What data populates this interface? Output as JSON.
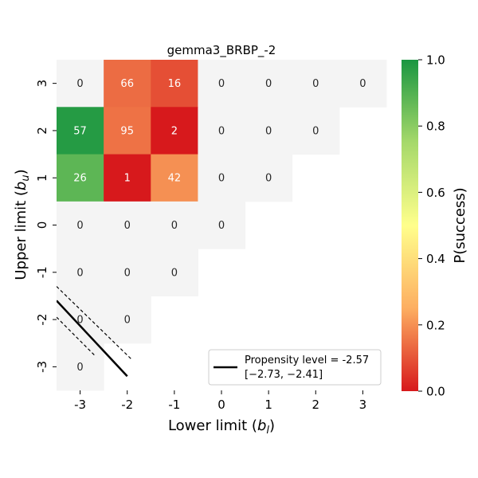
{
  "chart_data": {
    "type": "heatmap",
    "title": "gemma3_BRBP_-2",
    "xlabel_main": "Lower limit (",
    "xlabel_var": "b",
    "xlabel_sub": "l",
    "xlabel_close": ")",
    "ylabel_main": "Upper limit (",
    "ylabel_var": "b",
    "ylabel_sub": "u",
    "ylabel_close": ")",
    "x_ticks": [
      "-3",
      "-2",
      "-1",
      "0",
      "1",
      "2",
      "3"
    ],
    "y_ticks": [
      "3",
      "2",
      "1",
      "0",
      "-1",
      "-2",
      "-3"
    ],
    "cells": [
      {
        "row": 0,
        "col": 0,
        "label": "0",
        "p": null
      },
      {
        "row": 0,
        "col": 1,
        "label": "66",
        "p": 0.14
      },
      {
        "row": 0,
        "col": 2,
        "label": "16",
        "p": 0.09
      },
      {
        "row": 0,
        "col": 3,
        "label": "0",
        "p": null
      },
      {
        "row": 0,
        "col": 4,
        "label": "0",
        "p": null
      },
      {
        "row": 0,
        "col": 5,
        "label": "0",
        "p": null
      },
      {
        "row": 0,
        "col": 6,
        "label": "0",
        "p": null
      },
      {
        "row": 1,
        "col": 0,
        "label": "57",
        "p": 0.98
      },
      {
        "row": 1,
        "col": 1,
        "label": "95",
        "p": 0.15
      },
      {
        "row": 1,
        "col": 2,
        "label": "2",
        "p": 0.0
      },
      {
        "row": 1,
        "col": 3,
        "label": "0",
        "p": null
      },
      {
        "row": 1,
        "col": 4,
        "label": "0",
        "p": null
      },
      {
        "row": 1,
        "col": 5,
        "label": "0",
        "p": null
      },
      {
        "row": 2,
        "col": 0,
        "label": "26",
        "p": 0.88
      },
      {
        "row": 2,
        "col": 1,
        "label": "1",
        "p": 0.0
      },
      {
        "row": 2,
        "col": 2,
        "label": "42",
        "p": 0.2
      },
      {
        "row": 2,
        "col": 3,
        "label": "0",
        "p": null
      },
      {
        "row": 2,
        "col": 4,
        "label": "0",
        "p": null
      },
      {
        "row": 3,
        "col": 0,
        "label": "0",
        "p": null
      },
      {
        "row": 3,
        "col": 1,
        "label": "0",
        "p": null
      },
      {
        "row": 3,
        "col": 2,
        "label": "0",
        "p": null
      },
      {
        "row": 3,
        "col": 3,
        "label": "0",
        "p": null
      },
      {
        "row": 4,
        "col": 0,
        "label": "0",
        "p": null
      },
      {
        "row": 4,
        "col": 1,
        "label": "0",
        "p": null
      },
      {
        "row": 4,
        "col": 2,
        "label": "0",
        "p": null
      },
      {
        "row": 5,
        "col": 0,
        "label": "0",
        "p": null
      },
      {
        "row": 5,
        "col": 1,
        "label": "0",
        "p": null
      },
      {
        "row": 6,
        "col": 0,
        "label": "0",
        "p": null
      }
    ],
    "empty_color": "#f4f4f4",
    "colorbar": {
      "label": "P(success)",
      "range": [
        0.0,
        1.0
      ],
      "ticks": [
        "0.0",
        "0.2",
        "0.4",
        "0.6",
        "0.8",
        "1.0"
      ],
      "colors": [
        "#d7191c",
        "#fdae61",
        "#ffff8c",
        "#a6d96a",
        "#1a9641"
      ]
    },
    "propensity_line": {
      "x": [
        -3.5,
        -2.0
      ],
      "y": [
        -1.6,
        -3.2
      ],
      "upper_x": [
        -3.5,
        -1.9
      ],
      "upper_y": [
        -1.3,
        -2.85
      ],
      "lower_x": [
        -3.5,
        -2.7
      ],
      "lower_y": [
        -1.95,
        -2.75
      ]
    },
    "legend": {
      "line1": "Propensity level = -2.57",
      "line2": "[−2.73, −2.41]",
      "placement": "lower-right"
    }
  }
}
